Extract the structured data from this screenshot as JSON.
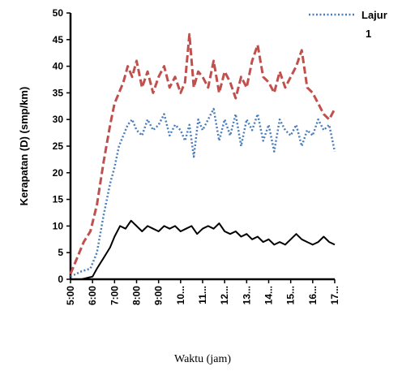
{
  "chart_data": {
    "type": "line",
    "xlabel": "Waktu (jam)",
    "ylabel": "Kerapatan (D) (smp/km)",
    "ylim": [
      0,
      50
    ],
    "yticks": [
      "0",
      "5",
      "10",
      "15",
      "20",
      "25",
      "30",
      "35",
      "40",
      "45",
      "50"
    ],
    "xticks": [
      "5:00",
      "6:00",
      "7:00",
      "8:00",
      "9:00",
      "10...",
      "11...",
      "12...",
      "13...",
      "14...",
      "15...",
      "16...",
      "17..."
    ],
    "xlim": [
      5,
      17
    ],
    "legend_position": "top-right",
    "legend": {
      "line1": "Lajur",
      "line2": "1"
    },
    "series": [
      {
        "key": "lajur1",
        "style": "dotted",
        "color": "#4a7ebb",
        "x": [
          5.0,
          5.5,
          5.9,
          6.2,
          6.5,
          6.8,
          7.0,
          7.2,
          7.4,
          7.6,
          7.8,
          8.0,
          8.25,
          8.5,
          8.75,
          9.0,
          9.25,
          9.5,
          9.75,
          10.0,
          10.2,
          10.4,
          10.6,
          10.8,
          11.0,
          11.25,
          11.5,
          11.75,
          12.0,
          12.25,
          12.5,
          12.75,
          13.0,
          13.25,
          13.5,
          13.75,
          14.0,
          14.25,
          14.5,
          14.75,
          15.0,
          15.25,
          15.5,
          15.75,
          16.0,
          16.25,
          16.5,
          16.75,
          17.0
        ],
        "y": [
          0.5,
          1.5,
          2,
          5,
          12,
          18,
          21,
          25,
          27,
          29,
          30,
          28,
          27,
          30,
          28,
          29,
          31,
          27,
          29,
          28,
          26,
          29,
          23,
          30,
          28,
          30,
          32,
          26,
          30,
          27,
          31,
          25,
          30,
          28,
          31,
          26,
          29,
          24,
          30,
          28,
          27,
          29,
          25,
          28,
          27,
          30,
          28,
          29,
          24
        ]
      },
      {
        "key": "lajur2",
        "style": "dashed",
        "color": "#c0504d",
        "x": [
          5.0,
          5.3,
          5.6,
          5.9,
          6.2,
          6.5,
          6.8,
          7.0,
          7.2,
          7.4,
          7.6,
          7.8,
          8.0,
          8.25,
          8.5,
          8.75,
          9.0,
          9.25,
          9.5,
          9.75,
          10.0,
          10.2,
          10.4,
          10.6,
          10.8,
          11.0,
          11.25,
          11.5,
          11.75,
          12.0,
          12.25,
          12.5,
          12.75,
          13.0,
          13.25,
          13.5,
          13.75,
          14.0,
          14.25,
          14.5,
          14.75,
          15.0,
          15.25,
          15.5,
          15.75,
          16.0,
          16.25,
          16.5,
          16.75,
          17.0
        ],
        "y": [
          1,
          4,
          7,
          9,
          14,
          22,
          29,
          33,
          35,
          37,
          40,
          38,
          41,
          36,
          39,
          35,
          38,
          40,
          36,
          38,
          35,
          37,
          46,
          36,
          39,
          38,
          36,
          41,
          35,
          39,
          37,
          34,
          38,
          36,
          41,
          44,
          38,
          37,
          35,
          39,
          36,
          38,
          40,
          43,
          36,
          35,
          33,
          31,
          30,
          32
        ]
      },
      {
        "key": "lajur3",
        "style": "solid",
        "color": "#000000",
        "x": [
          5.0,
          5.5,
          6.0,
          6.2,
          6.5,
          6.8,
          7.0,
          7.25,
          7.5,
          7.75,
          8.0,
          8.25,
          8.5,
          8.75,
          9.0,
          9.25,
          9.5,
          9.75,
          10.0,
          10.25,
          10.5,
          10.75,
          11.0,
          11.25,
          11.5,
          11.75,
          12.0,
          12.25,
          12.5,
          12.75,
          13.0,
          13.25,
          13.5,
          13.75,
          14.0,
          14.25,
          14.5,
          14.75,
          15.0,
          15.25,
          15.5,
          15.75,
          16.0,
          16.25,
          16.5,
          16.75,
          17.0
        ],
        "y": [
          0,
          0,
          0.5,
          2,
          4,
          6,
          8,
          10,
          9.5,
          11,
          10,
          9,
          10,
          9.5,
          9,
          10,
          9.5,
          10,
          9,
          9.5,
          10,
          8.5,
          9.5,
          10,
          9.5,
          10.5,
          9,
          8.5,
          9,
          8,
          8.5,
          7.5,
          8,
          7,
          7.5,
          6.5,
          7,
          6.5,
          7.5,
          8.5,
          7.5,
          7,
          6.5,
          7,
          8,
          7,
          6.5
        ]
      }
    ]
  }
}
